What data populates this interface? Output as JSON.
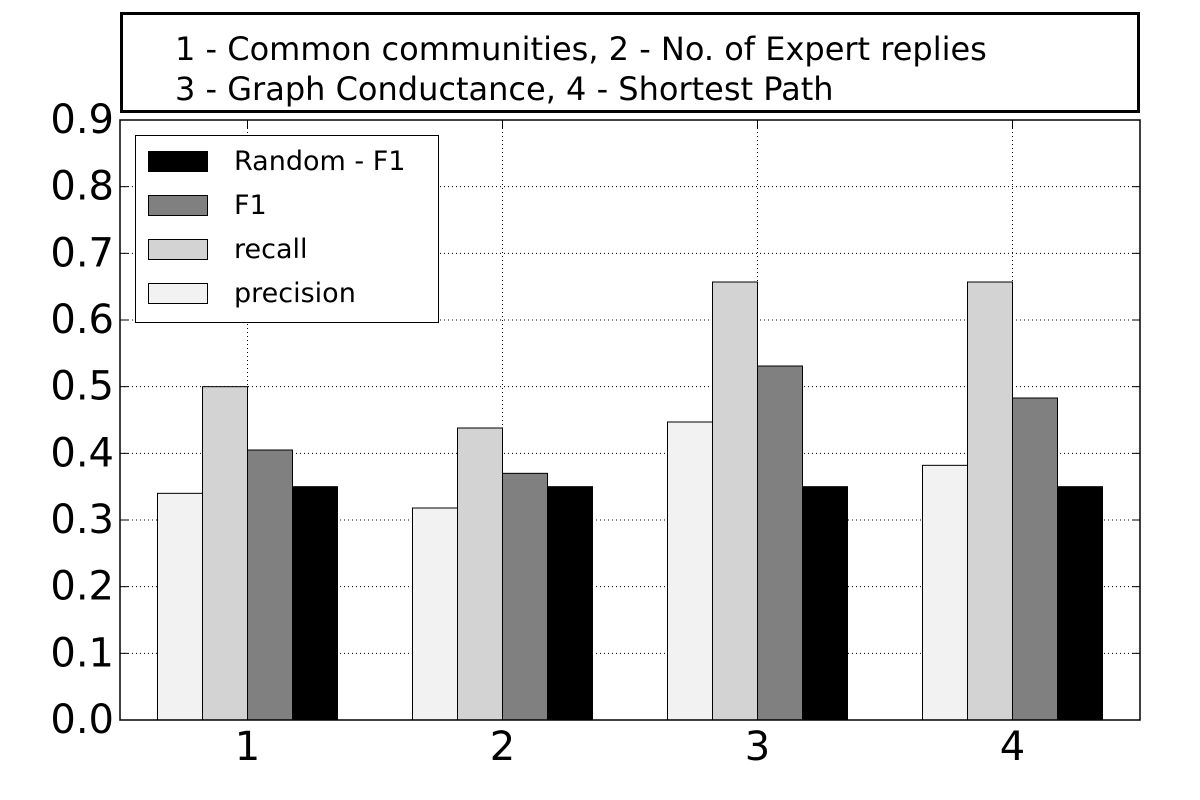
{
  "caption": {
    "line1": "1 - Common communities, 2 - No. of Expert replies",
    "line2": "3 - Graph Conductance, 4 - Shortest Path"
  },
  "chart_data": {
    "type": "bar",
    "title": "",
    "xlabel": "",
    "ylabel": "",
    "categories": [
      "1",
      "2",
      "3",
      "4"
    ],
    "ylim": [
      0.0,
      0.9
    ],
    "yticks": [
      "0.0",
      "0.1",
      "0.2",
      "0.3",
      "0.4",
      "0.5",
      "0.6",
      "0.7",
      "0.8",
      "0.9"
    ],
    "grid": true,
    "legend_position": "top-left",
    "series": [
      {
        "name": "precision",
        "color": "#f2f2f2",
        "values": [
          0.34,
          0.318,
          0.447,
          0.382
        ]
      },
      {
        "name": "recall",
        "color": "#d3d3d3",
        "values": [
          0.5,
          0.438,
          0.657,
          0.657
        ]
      },
      {
        "name": "F1",
        "color": "#808080",
        "values": [
          0.405,
          0.37,
          0.531,
          0.483
        ]
      },
      {
        "name": "Random - F1",
        "color": "#000000",
        "values": [
          0.35,
          0.35,
          0.35,
          0.35
        ]
      }
    ],
    "legend_order": [
      3,
      2,
      1,
      0
    ]
  }
}
